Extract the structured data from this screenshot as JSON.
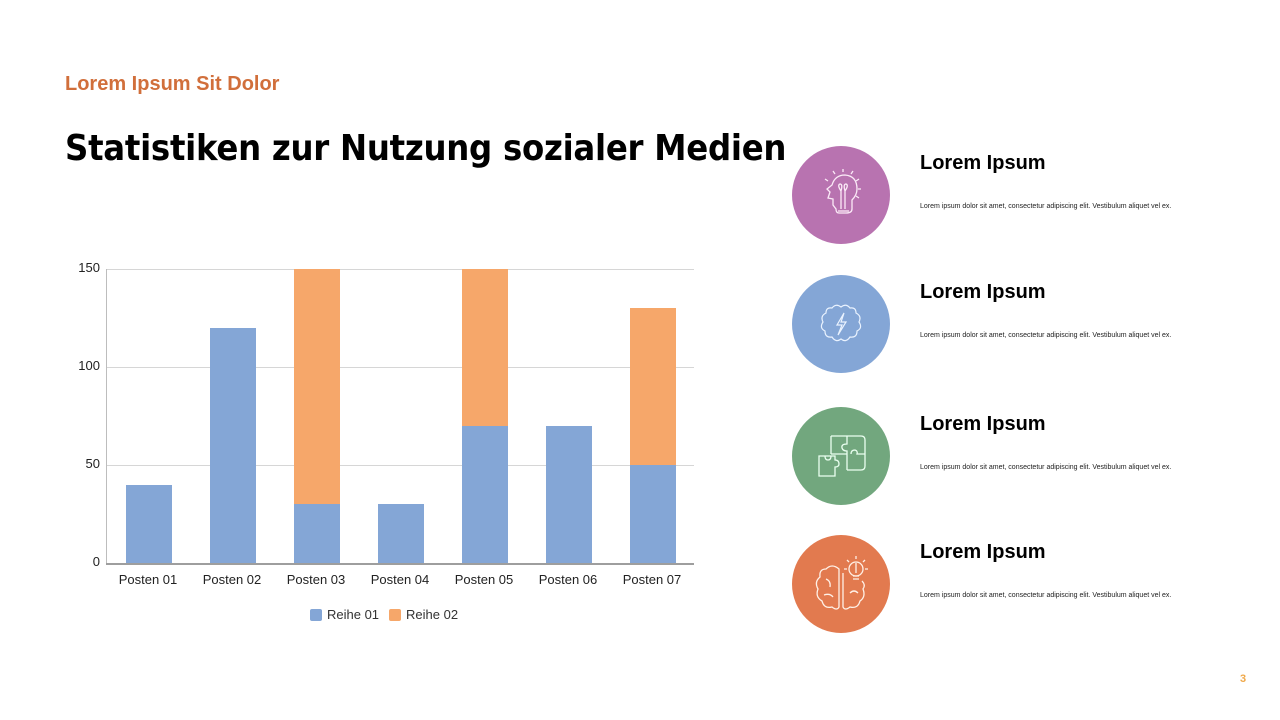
{
  "header": {
    "subtitle": "Lorem Ipsum Sit Dolor",
    "title": "Statistiken zur Nutzung sozialer Medien"
  },
  "colors": {
    "accent": "#d16f3b",
    "series1": "#84a6d6",
    "series2": "#f6a76a",
    "purple": "#b873b0",
    "blue": "#84a6d6",
    "green": "#72a77e",
    "orange": "#e27a4f",
    "page_number": "#f0a94a"
  },
  "chart_data": {
    "type": "bar",
    "stacked": true,
    "title": "",
    "xlabel": "",
    "ylabel": "",
    "ylim": [
      0,
      150
    ],
    "yticks": [
      0,
      50,
      100,
      150
    ],
    "grid": true,
    "legend_position": "bottom",
    "categories": [
      "Posten 01",
      "Posten 02",
      "Posten 03",
      "Posten 04",
      "Posten 05",
      "Posten 06",
      "Posten 07"
    ],
    "series": [
      {
        "name": "Reihe 01",
        "color": "#84a6d6",
        "values": [
          40,
          120,
          30,
          30,
          70,
          70,
          50
        ]
      },
      {
        "name": "Reihe 02",
        "color": "#f6a76a",
        "values": [
          0,
          0,
          120,
          0,
          80,
          0,
          80
        ]
      }
    ]
  },
  "chart": {
    "yticks": [
      "0",
      "50",
      "100",
      "150"
    ],
    "categories": [
      "Posten 01",
      "Posten 02",
      "Posten 03",
      "Posten 04",
      "Posten 05",
      "Posten 06",
      "Posten 07"
    ],
    "legend": [
      "Reihe 01",
      "Reihe 02"
    ]
  },
  "cards": [
    {
      "icon": "head-lightbulb-icon",
      "title": "Lorem Ipsum",
      "text": "Lorem ipsum dolor sit amet, consectetur adipiscing elit. Vestibulum aliquet vel ex."
    },
    {
      "icon": "brain-lightning-icon",
      "title": "Lorem Ipsum",
      "text": "Lorem ipsum dolor sit amet, consectetur adipiscing elit. Vestibulum aliquet vel ex."
    },
    {
      "icon": "puzzle-icon",
      "title": "Lorem Ipsum",
      "text": "Lorem ipsum dolor sit amet, consectetur adipiscing elit. Vestibulum aliquet vel ex."
    },
    {
      "icon": "brain-idea-icon",
      "title": "Lorem Ipsum",
      "text": "Lorem ipsum dolor sit amet, consectetur adipiscing elit. Vestibulum aliquet vel ex."
    }
  ],
  "page_number": "3"
}
